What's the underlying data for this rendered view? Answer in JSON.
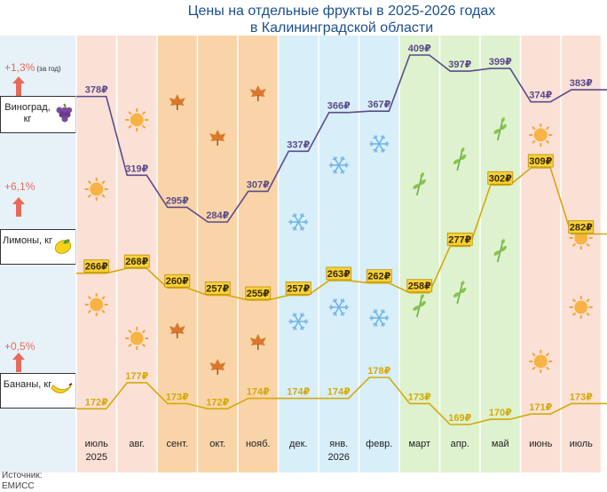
{
  "title_line1": "Цены на отдельные фрукты в 2025-2026 годах",
  "title_line2": "в Калининградской области",
  "source_line1": "Источник:",
  "source_line2": "ЕМИСС",
  "colors": {
    "title": "#1b4f8f",
    "grapes_line": "#5b4b8a",
    "lemons_line": "#d4a90a",
    "bananas_line": "#d4a90a",
    "summer_band": "#fbe0d6",
    "autumn_band": "#f9d4a8",
    "winter_band": "#d8eef9",
    "spring_band": "#def2cf",
    "change_arrow": "#e86a5a"
  },
  "chart_data": {
    "type": "line",
    "title": "Цены на отдельные фрукты в 2025-2026 годах в Калининградской области",
    "months": [
      {
        "label": "июль",
        "year": "2025",
        "season": "summer",
        "icon": "sun-icon"
      },
      {
        "label": "авг.",
        "year": "",
        "season": "summer",
        "icon": "sun-icon"
      },
      {
        "label": "сент.",
        "year": "",
        "season": "autumn",
        "icon": "maple-leaf-icon"
      },
      {
        "label": "окт.",
        "year": "",
        "season": "autumn",
        "icon": "maple-leaf-icon"
      },
      {
        "label": "нояб.",
        "year": "",
        "season": "autumn",
        "icon": "maple-leaf-icon"
      },
      {
        "label": "дек.",
        "year": "",
        "season": "winter",
        "icon": "snowflake-icon"
      },
      {
        "label": "янв.",
        "year": "2026",
        "season": "winter",
        "icon": "snowflake-icon"
      },
      {
        "label": "февр.",
        "year": "",
        "season": "winter",
        "icon": "snowflake-icon"
      },
      {
        "label": "март",
        "year": "",
        "season": "spring",
        "icon": "sprout-icon"
      },
      {
        "label": "апр.",
        "year": "",
        "season": "spring",
        "icon": "sprout-icon"
      },
      {
        "label": "май",
        "year": "",
        "season": "spring",
        "icon": "sprout-icon"
      },
      {
        "label": "июнь",
        "year": "",
        "season": "summer",
        "icon": "sun-icon"
      },
      {
        "label": "июль",
        "year": "",
        "season": "summer",
        "icon": "sun-icon"
      }
    ],
    "currency": "₽",
    "series": [
      {
        "name": "Виноград, кг",
        "change": "+1,3%",
        "change_note": "(за год)",
        "icon": "grapes-icon",
        "values": [
          378,
          319,
          295,
          284,
          307,
          337,
          366,
          367,
          409,
          397,
          399,
          374,
          383
        ]
      },
      {
        "name": "Лимоны, кг",
        "change": "+6,1%",
        "change_note": "",
        "icon": "lemon-icon",
        "values": [
          266,
          268,
          260,
          257,
          255,
          257,
          263,
          262,
          258,
          277,
          302,
          309,
          282
        ]
      },
      {
        "name": "Бананы, кг",
        "change": "+0,5%",
        "change_note": "",
        "icon": "banana-icon",
        "values": [
          172,
          177,
          173,
          172,
          174,
          174,
          174,
          178,
          173,
          169,
          170,
          171,
          173
        ]
      }
    ]
  }
}
